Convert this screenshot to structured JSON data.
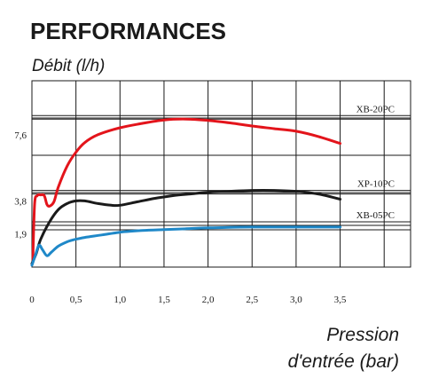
{
  "chart_data": {
    "type": "line",
    "title": "PERFORMANCES",
    "ylabel": "Débit (l/h)",
    "xlabel_line1": "Pression",
    "xlabel_line2": "d'entrée (bar)",
    "xlim": [
      0,
      4.3
    ],
    "ylim": [
      0,
      10.7
    ],
    "x_ticks": [
      "0",
      "0,5",
      "1,0",
      "1,5",
      "2,0",
      "2,5",
      "3,0",
      "3,5"
    ],
    "x_tick_values": [
      0,
      0.5,
      1.0,
      1.5,
      2.0,
      2.5,
      3.0,
      3.5
    ],
    "y_ticks": [
      "1,9",
      "3,8",
      "7,6"
    ],
    "y_tick_values": [
      1.9,
      3.8,
      7.6
    ],
    "grid": true,
    "series": [
      {
        "name": "XB-20PC",
        "color": "#e3141b",
        "points": [
          [
            0.01,
            0.3
          ],
          [
            0.03,
            3.6
          ],
          [
            0.06,
            4.1
          ],
          [
            0.1,
            4.15
          ],
          [
            0.14,
            4.1
          ],
          [
            0.17,
            3.6
          ],
          [
            0.2,
            3.5
          ],
          [
            0.25,
            3.75
          ],
          [
            0.3,
            4.6
          ],
          [
            0.4,
            5.8
          ],
          [
            0.5,
            6.6
          ],
          [
            0.6,
            7.15
          ],
          [
            0.75,
            7.6
          ],
          [
            1.0,
            8.0
          ],
          [
            1.25,
            8.25
          ],
          [
            1.5,
            8.45
          ],
          [
            1.75,
            8.5
          ],
          [
            2.0,
            8.42
          ],
          [
            2.25,
            8.28
          ],
          [
            2.5,
            8.1
          ],
          [
            2.75,
            7.95
          ],
          [
            3.0,
            7.8
          ],
          [
            3.25,
            7.5
          ],
          [
            3.5,
            7.1
          ]
        ],
        "reference_line": 8.7
      },
      {
        "name": "XP-10PC",
        "color": "#1a1a1a",
        "points": [
          [
            0.0,
            0.2
          ],
          [
            0.05,
            0.8
          ],
          [
            0.1,
            1.6
          ],
          [
            0.2,
            2.6
          ],
          [
            0.3,
            3.3
          ],
          [
            0.4,
            3.65
          ],
          [
            0.5,
            3.8
          ],
          [
            0.6,
            3.8
          ],
          [
            0.75,
            3.65
          ],
          [
            0.9,
            3.55
          ],
          [
            1.0,
            3.55
          ],
          [
            1.2,
            3.75
          ],
          [
            1.4,
            3.95
          ],
          [
            1.6,
            4.1
          ],
          [
            1.8,
            4.2
          ],
          [
            2.0,
            4.3
          ],
          [
            2.25,
            4.35
          ],
          [
            2.5,
            4.4
          ],
          [
            2.75,
            4.4
          ],
          [
            3.0,
            4.35
          ],
          [
            3.25,
            4.2
          ],
          [
            3.5,
            3.9
          ]
        ],
        "reference_line": 4.4
      },
      {
        "name": "XB-05PC",
        "color": "#1f88c8",
        "points": [
          [
            0.0,
            0.1
          ],
          [
            0.04,
            0.7
          ],
          [
            0.08,
            1.25
          ],
          [
            0.12,
            1.0
          ],
          [
            0.17,
            0.65
          ],
          [
            0.22,
            0.85
          ],
          [
            0.3,
            1.2
          ],
          [
            0.4,
            1.45
          ],
          [
            0.5,
            1.6
          ],
          [
            0.6,
            1.7
          ],
          [
            0.8,
            1.85
          ],
          [
            1.0,
            2.0
          ],
          [
            1.25,
            2.1
          ],
          [
            1.5,
            2.15
          ],
          [
            1.75,
            2.2
          ],
          [
            2.0,
            2.25
          ],
          [
            2.5,
            2.3
          ],
          [
            3.0,
            2.3
          ],
          [
            3.5,
            2.3
          ]
        ],
        "reference_line": 2.6
      }
    ]
  }
}
